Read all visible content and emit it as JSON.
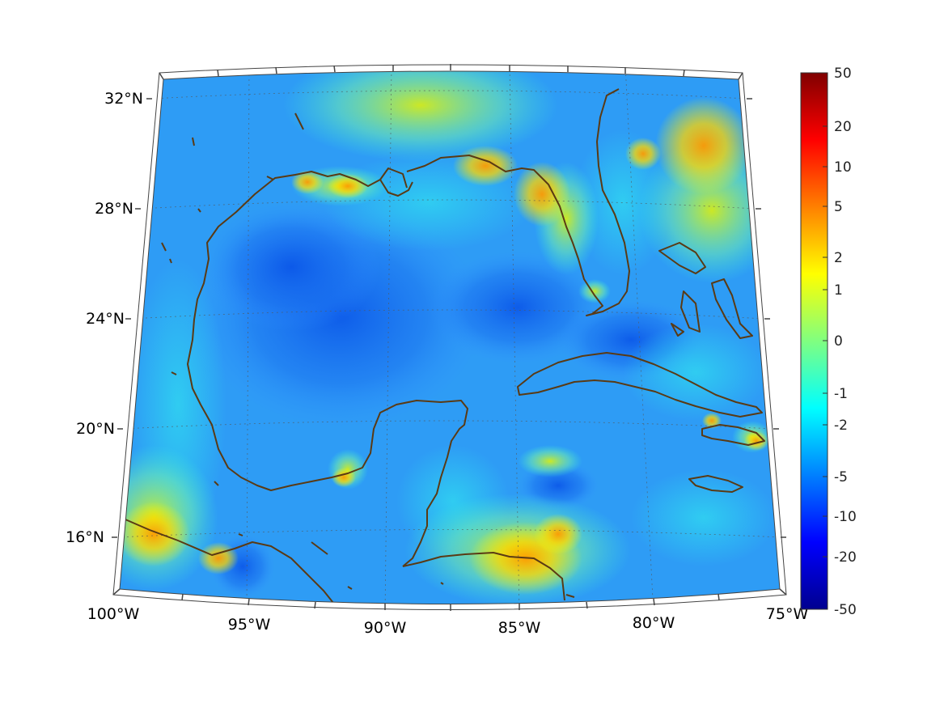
{
  "map": {
    "extent": {
      "lon_min": -100,
      "lon_max": -75,
      "lat_min": 14,
      "lat_max": 33
    },
    "longitude_labels": [
      "100°W",
      "95°W",
      "90°W",
      "85°W",
      "80°W",
      "75°W"
    ],
    "latitude_labels": [
      "16°N",
      "20°N",
      "24°N",
      "28°N",
      "32°N"
    ],
    "coastline_color": "#5a3a14",
    "grid": "dotted"
  },
  "colorbar": {
    "tick_labels": [
      "50",
      "20",
      "10",
      "5",
      "2",
      "1",
      "0",
      "-1",
      "-2",
      "-5",
      "-10",
      "-20",
      "-50"
    ],
    "colormap": "jet",
    "colors": [
      "#00008f",
      "#0000ff",
      "#0080ff",
      "#00ffff",
      "#80ff80",
      "#ffff00",
      "#ff8000",
      "#ff0000",
      "#800000"
    ]
  }
}
